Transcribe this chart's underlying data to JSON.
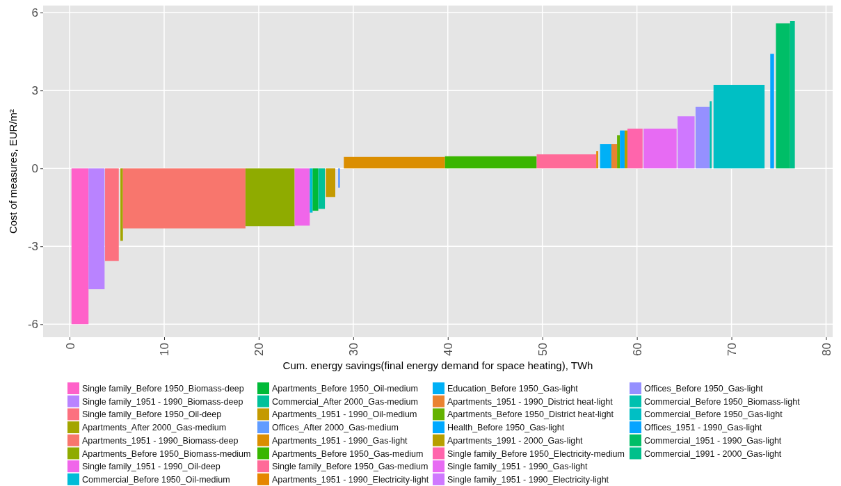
{
  "chart_data": {
    "type": "area",
    "xlabel": "Cum. energy savings(final energy demand for space heating), TWh",
    "ylabel": "Cost of measures, EUR/m²",
    "xlim": [
      -2.8,
      80.7
    ],
    "xticks": [
      0,
      10,
      20,
      30,
      40,
      50,
      60,
      70,
      80
    ],
    "ylim": [
      -6.5,
      6.27
    ],
    "yticks": [
      -6,
      -3,
      0,
      3,
      6
    ],
    "grid": true,
    "legend": "bottom",
    "series": [
      {
        "name": "Single family_Before 1950_Biomass-deep",
        "color": "#ff61c9",
        "x": [
          0.2,
          2.0
        ],
        "values": [
          -6.0,
          -6.0
        ]
      },
      {
        "name": "Single family_1951 - 1990_Biomass-deep",
        "color": "#b983ff",
        "x": [
          2.0,
          3.7
        ],
        "values": [
          -4.65,
          -4.65
        ]
      },
      {
        "name": "Single family_Before 1950_Oil-deep",
        "color": "#fc717f",
        "x": [
          3.75,
          5.2
        ],
        "values": [
          -3.56,
          -3.56
        ]
      },
      {
        "name": "Apartments_After 2000_Gas-medium",
        "color": "#a3a500",
        "x": [
          5.37,
          5.64
        ],
        "values": [
          -2.79,
          -2.79
        ]
      },
      {
        "name": "Apartments_1951 - 1990_Biomass-deep",
        "color": "#f8766d",
        "x": [
          5.64,
          18.6
        ],
        "values": [
          -2.31,
          -2.31
        ]
      },
      {
        "name": "Apartments_Before 1950_Biomass-medium",
        "color": "#8fab00",
        "x": [
          18.6,
          23.8
        ],
        "values": [
          -2.22,
          -2.22
        ]
      },
      {
        "name": "Single family_1951 - 1990_Oil-deep",
        "color": "#f066ea",
        "x": [
          23.8,
          25.4
        ],
        "values": [
          -2.2,
          -2.2
        ]
      },
      {
        "name": "Commercial_Before 1950_Oil-medium",
        "color": "#00bcd8",
        "x": [
          25.4,
          25.7
        ],
        "values": [
          -1.7,
          -1.7
        ]
      },
      {
        "name": "Apartments_Before 1950_Oil-medium",
        "color": "#00ba38",
        "x": [
          25.7,
          26.3
        ],
        "values": [
          -1.63,
          -1.63
        ]
      },
      {
        "name": "Commercial_After 2000_Gas-medium",
        "color": "#00c19a",
        "x": [
          26.3,
          27.0
        ],
        "values": [
          -1.56,
          -1.56
        ]
      },
      {
        "name": "Apartments_1951 - 1990_Oil-medium",
        "color": "#c49a00",
        "x": [
          27.1,
          28.1
        ],
        "values": [
          -1.1,
          -1.1
        ]
      },
      {
        "name": "Offices_After 2000_Gas-medium",
        "color": "#619cff",
        "x": [
          28.4,
          28.6
        ],
        "values": [
          -0.74,
          -0.74
        ]
      },
      {
        "name": "Apartments_1951 - 1990_Gas-light",
        "color": "#db8e00",
        "x": [
          29.0,
          39.7
        ],
        "values": [
          0.44,
          0.44
        ]
      },
      {
        "name": "Apartments_Before 1950_Gas-medium",
        "color": "#39b600",
        "x": [
          39.7,
          49.4
        ],
        "values": [
          0.47,
          0.47
        ]
      },
      {
        "name": "Single family_Before 1950_Gas-medium",
        "color": "#ff6a98",
        "x": [
          49.4,
          55.7
        ],
        "values": [
          0.54,
          0.54
        ]
      },
      {
        "name": "Apartments_1951 - 1990_Electricity-light",
        "color": "#e58700",
        "x": [
          55.7,
          55.9
        ],
        "values": [
          0.67,
          0.67
        ]
      },
      {
        "name": "Education_Before 1950_Gas-light",
        "color": "#00b0f6",
        "x": [
          56.1,
          57.3
        ],
        "values": [
          0.94,
          0.94
        ]
      },
      {
        "name": "Apartments_1951 - 1990_District heat-light",
        "color": "#ea8331",
        "x": [
          57.3,
          57.9
        ],
        "values": [
          0.94,
          0.94
        ]
      },
      {
        "name": "Apartments_Before 1950_District heat-light",
        "color": "#64b200",
        "x": [
          57.9,
          58.2
        ],
        "values": [
          1.28,
          1.28
        ]
      },
      {
        "name": "Health_Before 1950_Gas-light",
        "color": "#00a9ff",
        "x": [
          58.2,
          58.7
        ],
        "values": [
          1.46,
          1.46
        ]
      },
      {
        "name": "Apartments_1991 - 2000_Gas-light",
        "color": "#b79f00",
        "x": [
          58.7,
          59.0
        ],
        "values": [
          1.46,
          1.46
        ]
      },
      {
        "name": "Single family_Before 1950_Electricity-medium",
        "color": "#ff65ac",
        "x": [
          59.0,
          60.6
        ],
        "values": [
          1.53,
          1.53
        ]
      },
      {
        "name": "Single family_1951 - 1990_Gas-light",
        "color": "#e76bf3",
        "x": [
          60.7,
          64.2
        ],
        "values": [
          1.53,
          1.53
        ]
      },
      {
        "name": "Single family_1951 - 1990_Electricity-light",
        "color": "#cf78ff",
        "x": [
          64.3,
          66.1
        ],
        "values": [
          2.01,
          2.01
        ]
      },
      {
        "name": "Offices_Before 1950_Gas-light",
        "color": "#9590ff",
        "x": [
          66.2,
          67.7
        ],
        "values": [
          2.37,
          2.37
        ]
      },
      {
        "name": "Commercial_Before 1950_Biomass-light",
        "color": "#00c0af",
        "x": [
          67.7,
          67.9
        ],
        "values": [
          2.59,
          2.59
        ]
      },
      {
        "name": "Commercial_Before 1950_Gas-light",
        "color": "#00bfc4",
        "x": [
          68.1,
          73.5
        ],
        "values": [
          3.22,
          3.22
        ]
      },
      {
        "name": "Offices_1951 - 1990_Gas-light",
        "color": "#06a4ff",
        "x": [
          74.1,
          74.5
        ],
        "values": [
          4.41,
          4.41
        ]
      },
      {
        "name": "Commercial_1951 - 1990_Gas-light",
        "color": "#00be67",
        "x": [
          74.7,
          76.2
        ],
        "values": [
          5.59,
          5.59
        ]
      },
      {
        "name": "Commercial_1991 - 2000_Gas-light",
        "color": "#00c08b",
        "x": [
          76.2,
          76.7
        ],
        "values": [
          5.68,
          5.68
        ]
      }
    ]
  }
}
